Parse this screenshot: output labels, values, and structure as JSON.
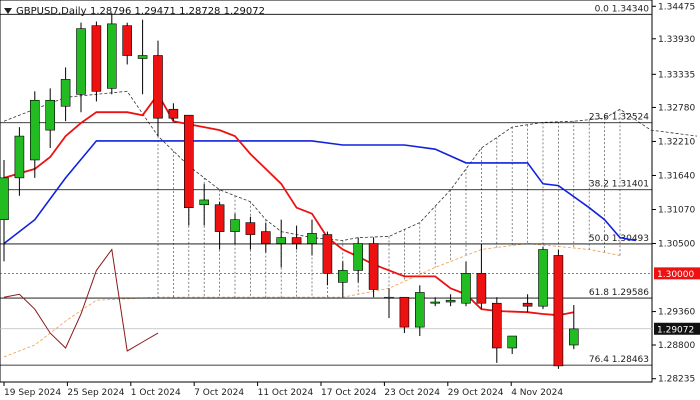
{
  "chart_data": {
    "type": "candlestick",
    "symbol": "GBPUSD,Daily",
    "ohlc_text": "1.28796 1.29471 1.28728 1.29072",
    "colors": {
      "bull": "#22bb22",
      "bear": "#ee1111",
      "frame": "#000000"
    },
    "y_ticks": [
      "1.34475",
      "1.33930",
      "1.33335",
      "1.32780",
      "1.32210",
      "1.31640",
      "1.31070",
      "1.30500",
      "1.29360",
      "1.28800",
      "1.28235"
    ],
    "x_ticks": [
      "19 Sep 2024",
      "25 Sep 2024",
      "1 Oct 2024",
      "7 Oct 2024",
      "11 Oct 2024",
      "17 Oct 2024",
      "23 Oct 2024",
      "29 Oct 2024",
      "4 Nov 2024"
    ],
    "ylim": [
      1.2818,
      1.3458
    ],
    "fib_levels": [
      {
        "label": "0.0 1.34340",
        "value": 1.3434
      },
      {
        "label": "23.6 1.32524",
        "value": 1.32524
      },
      {
        "label": "38.2 1.31401",
        "value": 1.31401
      },
      {
        "label": "50.0 1.30493",
        "value": 1.30493
      },
      {
        "label": "61.8 1.29586",
        "value": 1.29586
      },
      {
        "label": "76.4 1.28463",
        "value": 1.28463
      }
    ],
    "price_tags": [
      {
        "label": "1.30000",
        "value": 1.3
      },
      {
        "label": "1.29072",
        "value": 1.29072
      }
    ],
    "candles": [
      {
        "o": 1.309,
        "h": 1.319,
        "l": 1.302,
        "c": 1.316
      },
      {
        "o": 1.316,
        "h": 1.3245,
        "l": 1.313,
        "c": 1.323
      },
      {
        "o": 1.319,
        "h": 1.3305,
        "l": 1.316,
        "c": 1.329
      },
      {
        "o": 1.324,
        "h": 1.331,
        "l": 1.321,
        "c": 1.329
      },
      {
        "o": 1.328,
        "h": 1.3345,
        "l": 1.3255,
        "c": 1.3325
      },
      {
        "o": 1.33,
        "h": 1.342,
        "l": 1.327,
        "c": 1.341
      },
      {
        "o": 1.3415,
        "h": 1.3422,
        "l": 1.3288,
        "c": 1.3305
      },
      {
        "o": 1.331,
        "h": 1.3436,
        "l": 1.33,
        "c": 1.3418
      },
      {
        "o": 1.3415,
        "h": 1.342,
        "l": 1.335,
        "c": 1.3365
      },
      {
        "o": 1.336,
        "h": 1.3425,
        "l": 1.33,
        "c": 1.3365
      },
      {
        "o": 1.3365,
        "h": 1.339,
        "l": 1.323,
        "c": 1.326
      },
      {
        "o": 1.3275,
        "h": 1.3285,
        "l": 1.3255,
        "c": 1.326
      },
      {
        "o": 1.3265,
        "h": 1.3265,
        "l": 1.308,
        "c": 1.311
      },
      {
        "o": 1.3115,
        "h": 1.315,
        "l": 1.308,
        "c": 1.3123
      },
      {
        "o": 1.3115,
        "h": 1.312,
        "l": 1.304,
        "c": 1.307
      },
      {
        "o": 1.307,
        "h": 1.31,
        "l": 1.305,
        "c": 1.309
      },
      {
        "o": 1.3085,
        "h": 1.3095,
        "l": 1.304,
        "c": 1.3065
      },
      {
        "o": 1.307,
        "h": 1.3085,
        "l": 1.3035,
        "c": 1.305
      },
      {
        "o": 1.305,
        "h": 1.309,
        "l": 1.301,
        "c": 1.306
      },
      {
        "o": 1.306,
        "h": 1.308,
        "l": 1.304,
        "c": 1.305
      },
      {
        "o": 1.305,
        "h": 1.309,
        "l": 1.303,
        "c": 1.3067
      },
      {
        "o": 1.3065,
        "h": 1.307,
        "l": 1.298,
        "c": 1.3
      },
      {
        "o": 1.2985,
        "h": 1.302,
        "l": 1.296,
        "c": 1.3005
      },
      {
        "o": 1.3005,
        "h": 1.306,
        "l": 1.2985,
        "c": 1.305
      },
      {
        "o": 1.305,
        "h": 1.306,
        "l": 1.296,
        "c": 1.2973
      },
      {
        "o": 1.296,
        "h": 1.2975,
        "l": 1.2925,
        "c": 1.296
      },
      {
        "o": 1.296,
        "h": 1.296,
        "l": 1.29,
        "c": 1.291
      },
      {
        "o": 1.291,
        "h": 1.298,
        "l": 1.2895,
        "c": 1.2968
      },
      {
        "o": 1.295,
        "h": 1.296,
        "l": 1.2945,
        "c": 1.2952
      },
      {
        "o": 1.2952,
        "h": 1.2965,
        "l": 1.2945,
        "c": 1.2955
      },
      {
        "o": 1.295,
        "h": 1.302,
        "l": 1.2945,
        "c": 1.3
      },
      {
        "o": 1.3,
        "h": 1.305,
        "l": 1.294,
        "c": 1.295
      },
      {
        "o": 1.295,
        "h": 1.296,
        "l": 1.285,
        "c": 1.2875
      },
      {
        "o": 1.2875,
        "h": 1.2895,
        "l": 1.2865,
        "c": 1.2895
      },
      {
        "o": 1.295,
        "h": 1.2965,
        "l": 1.2935,
        "c": 1.2945
      },
      {
        "o": 1.2945,
        "h": 1.3045,
        "l": 1.294,
        "c": 1.304
      },
      {
        "o": 1.303,
        "h": 1.304,
        "l": 1.284,
        "c": 1.2845
      },
      {
        "o": 1.288,
        "h": 1.2947,
        "l": 1.2873,
        "c": 1.2907
      }
    ],
    "ichimoku_kijun": [
      [
        0,
        1.305
      ],
      [
        2,
        1.309
      ],
      [
        4,
        1.316
      ],
      [
        6,
        1.3222
      ],
      [
        8,
        1.3222
      ],
      [
        10,
        1.3222
      ],
      [
        12,
        1.3222
      ],
      [
        14,
        1.3222
      ],
      [
        16,
        1.3222
      ],
      [
        18,
        1.3222
      ],
      [
        20,
        1.3222
      ],
      [
        22,
        1.3215
      ],
      [
        24,
        1.3215
      ],
      [
        26,
        1.3215
      ],
      [
        28,
        1.3208
      ],
      [
        30,
        1.3185
      ],
      [
        32,
        1.3185
      ],
      [
        34,
        1.3185
      ],
      [
        35,
        1.315
      ],
      [
        36,
        1.3147
      ],
      [
        38,
        1.311
      ],
      [
        39,
        1.309
      ],
      [
        40,
        1.306
      ],
      [
        41,
        1.3055
      ]
    ],
    "ichimoku_tenkan": [
      [
        0,
        1.316
      ],
      [
        2,
        1.3175
      ],
      [
        3,
        1.3195
      ],
      [
        4,
        1.323
      ],
      [
        5,
        1.3252
      ],
      [
        6,
        1.327
      ],
      [
        8,
        1.327
      ],
      [
        9,
        1.3265
      ],
      [
        10,
        1.33
      ],
      [
        11,
        1.3255
      ],
      [
        12,
        1.325
      ],
      [
        14,
        1.324
      ],
      [
        15,
        1.323
      ],
      [
        16,
        1.32
      ],
      [
        17,
        1.3175
      ],
      [
        18,
        1.315
      ],
      [
        19,
        1.311
      ],
      [
        20,
        1.31
      ],
      [
        21,
        1.306
      ],
      [
        22,
        1.304
      ],
      [
        23,
        1.3028
      ],
      [
        24,
        1.3015
      ],
      [
        26,
        1.2995
      ],
      [
        28,
        1.2995
      ],
      [
        29,
        1.2975
      ],
      [
        30,
        1.2965
      ],
      [
        31,
        1.294
      ],
      [
        32,
        1.2937
      ],
      [
        34,
        1.2935
      ],
      [
        35,
        1.2932
      ],
      [
        36,
        1.293
      ],
      [
        37,
        1.2935
      ]
    ],
    "chikou": [
      [
        0,
        1.296
      ],
      [
        1,
        1.2965
      ],
      [
        2,
        1.294
      ],
      [
        3,
        1.29
      ],
      [
        4,
        1.2875
      ],
      [
        5,
        1.2932
      ],
      [
        6,
        1.3005
      ],
      [
        7,
        1.304
      ],
      [
        8,
        1.287
      ],
      [
        9,
        1.2885
      ],
      [
        10,
        1.29
      ]
    ],
    "cloud_upper": [
      [
        0,
        1.3255
      ],
      [
        2,
        1.3275
      ],
      [
        3,
        1.3285
      ],
      [
        4,
        1.3295
      ],
      [
        6,
        1.33
      ],
      [
        8,
        1.3305
      ],
      [
        10,
        1.323
      ],
      [
        12,
        1.318
      ],
      [
        14,
        1.314
      ],
      [
        16,
        1.312
      ],
      [
        17,
        1.309
      ],
      [
        18,
        1.307
      ],
      [
        20,
        1.306
      ],
      [
        22,
        1.3055
      ],
      [
        23,
        1.306
      ],
      [
        25,
        1.3062
      ],
      [
        27,
        1.3085
      ],
      [
        29,
        1.314
      ],
      [
        31,
        1.321
      ],
      [
        33,
        1.3245
      ],
      [
        35,
        1.3253
      ],
      [
        37,
        1.3255
      ],
      [
        39,
        1.326
      ],
      [
        40,
        1.3275
      ],
      [
        42,
        1.324
      ],
      [
        45,
        1.323
      ]
    ],
    "cloud_lower": [
      [
        0,
        1.286
      ],
      [
        2,
        1.288
      ],
      [
        4,
        1.292
      ],
      [
        6,
        1.2955
      ],
      [
        10,
        1.296
      ],
      [
        14,
        1.296
      ],
      [
        18,
        1.296
      ],
      [
        22,
        1.296
      ],
      [
        25,
        1.2975
      ],
      [
        28,
        1.301
      ],
      [
        31,
        1.304
      ],
      [
        34,
        1.305
      ],
      [
        36,
        1.3045
      ],
      [
        38,
        1.304
      ],
      [
        40,
        1.303
      ]
    ],
    "xlabel": "",
    "ylabel": ""
  }
}
